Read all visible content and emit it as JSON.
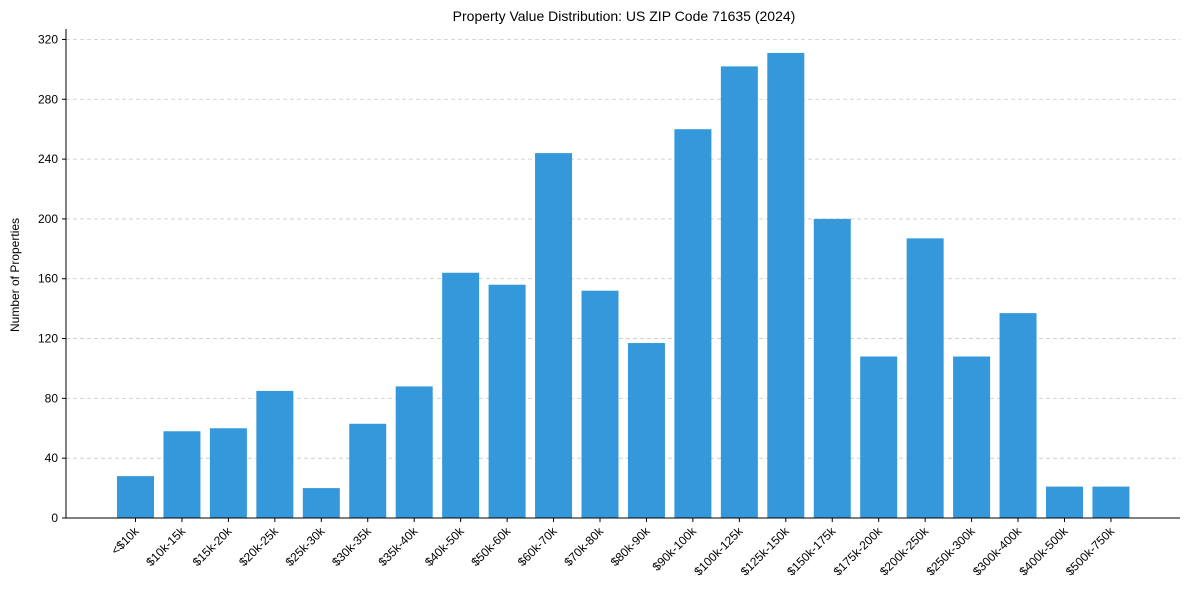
{
  "chart_data": {
    "type": "bar",
    "title": "Property Value Distribution: US ZIP Code 71635 (2024)",
    "xlabel": "",
    "ylabel": "Number of Properties",
    "categories": [
      "<$10k",
      "$10k-15k",
      "$15k-20k",
      "$20k-25k",
      "$25k-30k",
      "$30k-35k",
      "$35k-40k",
      "$40k-50k",
      "$50k-60k",
      "$60k-70k",
      "$70k-80k",
      "$80k-90k",
      "$90k-100k",
      "$100k-125k",
      "$125k-150k",
      "$150k-175k",
      "$175k-200k",
      "$200k-250k",
      "$250k-300k",
      "$300k-400k",
      "$400k-500k",
      "$500k-750k"
    ],
    "values": [
      28,
      58,
      60,
      85,
      20,
      63,
      88,
      164,
      156,
      244,
      152,
      117,
      260,
      302,
      311,
      200,
      108,
      187,
      108,
      137,
      21,
      21
    ],
    "ylim": [
      0,
      327
    ],
    "yticks": [
      0,
      40,
      80,
      120,
      160,
      200,
      240,
      280,
      320
    ],
    "grid": true,
    "bar_color": "#3498db"
  }
}
